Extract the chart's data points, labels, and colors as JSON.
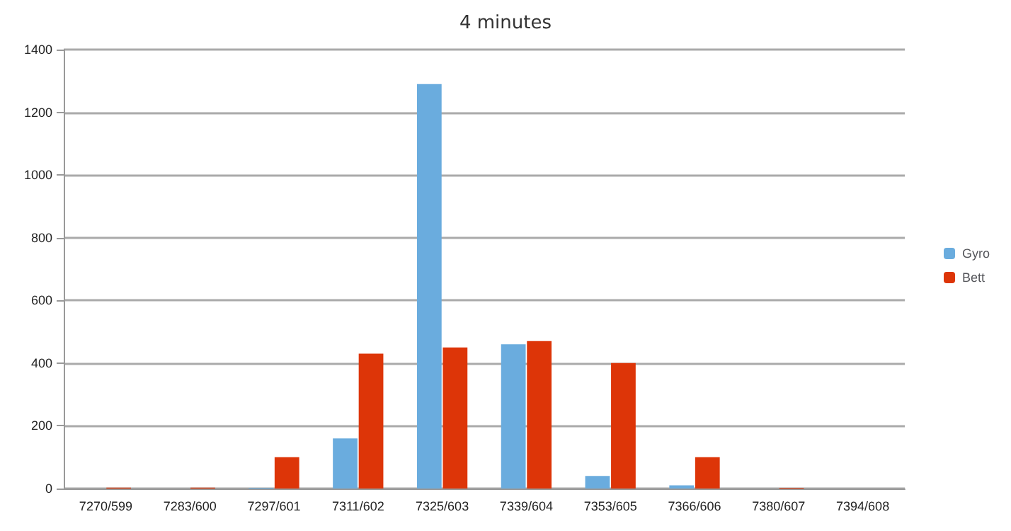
{
  "chart_data": {
    "type": "bar",
    "title": "4 minutes",
    "categories": [
      "7270/599",
      "7283/600",
      "7297/601",
      "7311/602",
      "7325/603",
      "7339/604",
      "7353/605",
      "7366/606",
      "7380/607",
      "7394/608"
    ],
    "series": [
      {
        "name": "Gyro",
        "color": "#6aacde",
        "values": [
          0,
          0,
          2,
          160,
          1290,
          460,
          40,
          10,
          0,
          0
        ]
      },
      {
        "name": "Bett",
        "color": "#dd3508",
        "values": [
          3,
          3,
          100,
          430,
          450,
          470,
          400,
          100,
          2,
          0
        ]
      }
    ],
    "ylim": [
      0,
      1400
    ],
    "yticks": [
      0,
      200,
      400,
      600,
      800,
      1000,
      1200,
      1400
    ],
    "grid": "y",
    "legend": "right"
  }
}
